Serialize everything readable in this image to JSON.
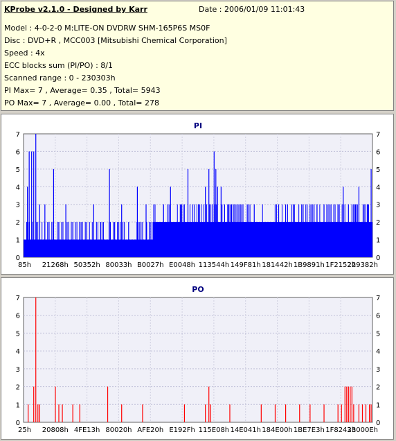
{
  "header": {
    "title": "KProbe v2.1.0 - Designed by Karr",
    "date": "Date : 2006/01/09 11:01:43",
    "lines": [
      "Model : 4-0-2-0 M:LITE-ON DVDRW SHM-165P6S MS0F",
      "Disc : DVD+R , MCC003 [Mitsubishi Chemical Corporation]",
      "Speed : 4x",
      "ECC blocks sum (PI/PO) : 8/1",
      "Scanned range : 0 - 230303h",
      "PI Max= 7 , Average= 0.35 , Total= 5943",
      "PO Max= 7 , Average= 0.00 , Total= 278"
    ]
  },
  "chart_data": [
    {
      "type": "bar",
      "title": "PI",
      "color": "#0000ff",
      "ylim": [
        0,
        7
      ],
      "yticks": [
        "0",
        "1",
        "2",
        "3",
        "4",
        "5",
        "6",
        "7"
      ],
      "xticks": [
        "85h",
        "21268h",
        "50352h",
        "80033h",
        "B0027h",
        "E0048h",
        "113544h",
        "149F81h",
        "181442h",
        "1B9891h",
        "1F2152h",
        "229382h"
      ],
      "grid": true,
      "x_range": [
        0,
        1
      ],
      "baseline": [
        {
          "x": [
            0.0,
            0.37
          ],
          "y": 1
        },
        {
          "x": [
            0.37,
            1.0
          ],
          "y": 2
        }
      ],
      "spikes": [
        [
          0.01,
          4
        ],
        [
          0.015,
          6
        ],
        [
          0.022,
          6
        ],
        [
          0.028,
          6
        ],
        [
          0.034,
          7
        ],
        [
          0.045,
          3
        ],
        [
          0.06,
          3
        ],
        [
          0.072,
          2
        ],
        [
          0.085,
          5
        ],
        [
          0.1,
          2
        ],
        [
          0.12,
          3
        ],
        [
          0.14,
          2
        ],
        [
          0.16,
          2
        ],
        [
          0.18,
          2
        ],
        [
          0.2,
          3
        ],
        [
          0.22,
          2
        ],
        [
          0.245,
          5
        ],
        [
          0.26,
          2
        ],
        [
          0.28,
          3
        ],
        [
          0.3,
          2
        ],
        [
          0.325,
          4
        ],
        [
          0.35,
          3
        ],
        [
          0.36,
          2
        ],
        [
          0.4,
          3
        ],
        [
          0.42,
          4
        ],
        [
          0.45,
          3
        ],
        [
          0.47,
          5
        ],
        [
          0.5,
          3
        ],
        [
          0.52,
          4
        ],
        [
          0.53,
          5
        ],
        [
          0.545,
          6
        ],
        [
          0.55,
          5
        ],
        [
          0.555,
          4
        ],
        [
          0.565,
          4
        ],
        [
          0.575,
          3
        ],
        [
          0.585,
          3
        ],
        [
          0.595,
          3
        ],
        [
          0.6,
          3
        ],
        [
          0.62,
          3
        ],
        [
          0.64,
          3
        ],
        [
          0.66,
          3
        ],
        [
          0.68,
          2
        ],
        [
          0.7,
          2
        ],
        [
          0.73,
          3
        ],
        [
          0.75,
          3
        ],
        [
          0.775,
          3
        ],
        [
          0.8,
          3
        ],
        [
          0.82,
          3
        ],
        [
          0.84,
          3
        ],
        [
          0.86,
          3
        ],
        [
          0.88,
          3
        ],
        [
          0.9,
          3
        ],
        [
          0.915,
          4
        ],
        [
          0.93,
          3
        ],
        [
          0.95,
          3
        ],
        [
          0.96,
          4
        ],
        [
          0.975,
          3
        ],
        [
          0.985,
          3
        ],
        [
          0.995,
          5
        ]
      ]
    },
    {
      "type": "bar",
      "title": "PO",
      "color": "#ff0000",
      "ylim": [
        0,
        7
      ],
      "yticks": [
        "0",
        "1",
        "2",
        "3",
        "4",
        "5",
        "6",
        "7"
      ],
      "xticks": [
        "25h",
        "20808h",
        "4FE13h",
        "80020h",
        "AFE20h",
        "E192Fh",
        "115E08h",
        "14E041h",
        "184E00h",
        "1BE7E3h",
        "1F8243h",
        "23000Eh"
      ],
      "grid": true,
      "x_range": [
        0,
        1
      ],
      "spikes": [
        [
          0.012,
          1
        ],
        [
          0.028,
          2
        ],
        [
          0.034,
          7
        ],
        [
          0.04,
          1
        ],
        [
          0.045,
          1
        ],
        [
          0.09,
          2
        ],
        [
          0.1,
          1
        ],
        [
          0.11,
          1
        ],
        [
          0.14,
          1
        ],
        [
          0.16,
          1
        ],
        [
          0.24,
          2
        ],
        [
          0.28,
          1
        ],
        [
          0.34,
          1
        ],
        [
          0.46,
          1
        ],
        [
          0.52,
          1
        ],
        [
          0.53,
          2
        ],
        [
          0.535,
          1
        ],
        [
          0.59,
          1
        ],
        [
          0.68,
          1
        ],
        [
          0.72,
          1
        ],
        [
          0.75,
          1
        ],
        [
          0.79,
          1
        ],
        [
          0.82,
          1
        ],
        [
          0.86,
          1
        ],
        [
          0.9,
          1
        ],
        [
          0.91,
          1
        ],
        [
          0.92,
          2
        ],
        [
          0.925,
          2
        ],
        [
          0.93,
          2
        ],
        [
          0.935,
          2
        ],
        [
          0.94,
          2
        ],
        [
          0.945,
          1
        ],
        [
          0.96,
          1
        ],
        [
          0.97,
          1
        ],
        [
          0.98,
          1
        ],
        [
          0.99,
          1
        ],
        [
          0.995,
          1
        ]
      ]
    }
  ]
}
